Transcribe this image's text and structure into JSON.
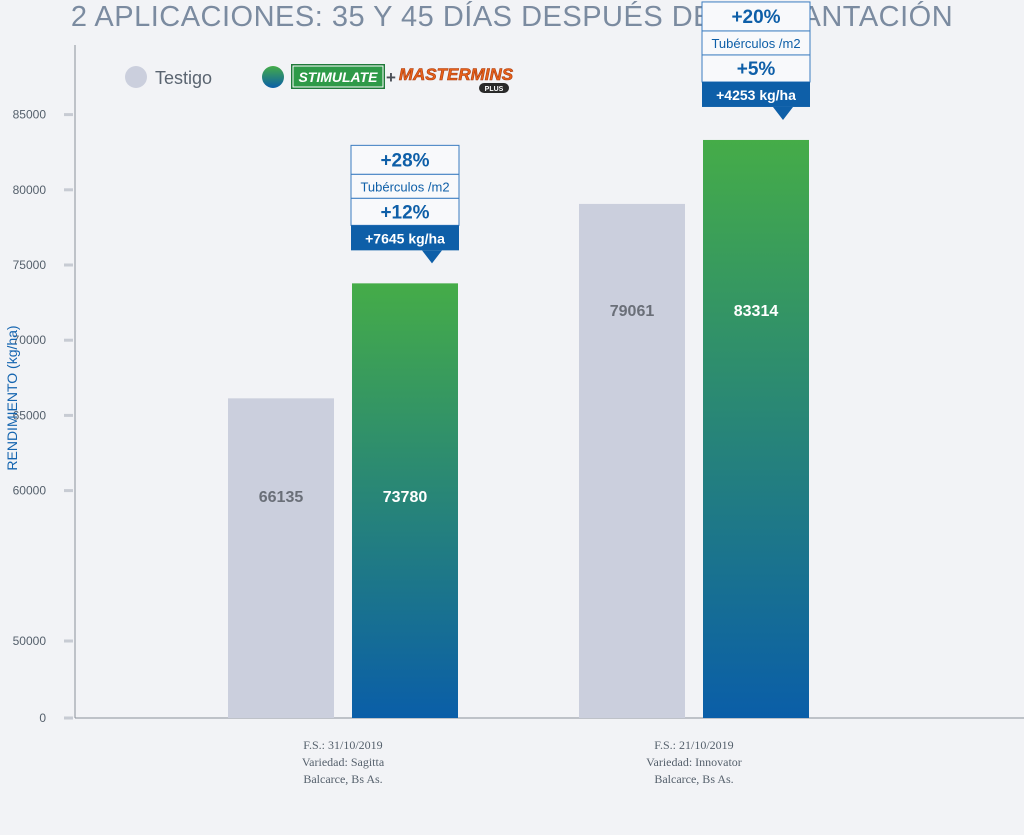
{
  "title": "2 APLICACIONES: 35 Y 45 DÍAS DESPUÉS DE LA PLANTACIÓN",
  "colors": {
    "testigo": "#cbcfdd",
    "treatment_top": "#45ac48",
    "treatment_bottom": "#0a5ea8",
    "axis": "#8a9099",
    "ylabel": "#1565b0",
    "callout_dark": "#0e5fa8",
    "callout_border": "#3a7cc0",
    "callout_text": "#0e5fa8"
  },
  "legend": {
    "testigo": "Testigo",
    "product1": "STIMULATE",
    "plus": "+",
    "product2": "MASTERMINS",
    "product2_sub": "PLUS"
  },
  "chart_data": {
    "type": "bar",
    "title": "2 APLICACIONES: 35 Y 45 DÍAS DESPUÉS DE LA PLANTACIÓN",
    "ylabel": "RENDIMIENTO (kg/ha)",
    "xlabel": "",
    "y_ticks": [
      0,
      50000,
      60000,
      65000,
      70000,
      75000,
      80000,
      85000
    ],
    "y_tick_labels": [
      "0",
      "50000",
      "60000",
      "65000",
      "70000",
      "75000",
      "80000",
      "85000"
    ],
    "categories": [
      [
        "F.S.: 31/10/2019",
        "Variedad: Sagitta",
        "Balcarce, Bs As."
      ],
      [
        "F.S.: 21/10/2019",
        "Variedad: Innovator",
        "Balcarce, Bs As."
      ]
    ],
    "series": [
      {
        "name": "Testigo",
        "values": [
          66135,
          79061
        ]
      },
      {
        "name": "STIMULATE + MASTERMINS PLUS",
        "values": [
          73780,
          83314
        ]
      }
    ],
    "annotations": [
      {
        "tuberculos_pct": "+28%",
        "tuberculos_label": "Tubérculos /m2",
        "yield_pct": "+12%",
        "yield_kg": "+7645 kg/ha"
      },
      {
        "tuberculos_pct": "+20%",
        "tuberculos_label": "Tubérculos /m2",
        "yield_pct": "+5%",
        "yield_kg": "+4253 kg/ha"
      }
    ]
  }
}
